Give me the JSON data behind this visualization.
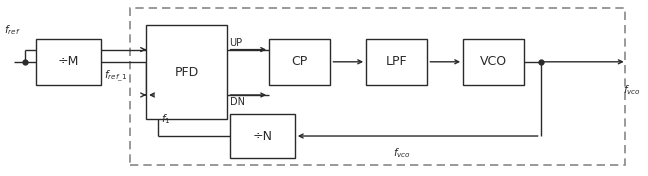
{
  "figsize": [
    6.48,
    1.76
  ],
  "dpi": 100,
  "bg": "#ffffff",
  "lc": "#2a2a2a",
  "dc": "#888888",
  "outer": [
    0.2,
    0.06,
    0.765,
    0.9
  ],
  "blocks": {
    "divM": [
      0.055,
      0.52,
      0.1,
      0.26
    ],
    "PFD": [
      0.225,
      0.32,
      0.125,
      0.54
    ],
    "CP": [
      0.415,
      0.52,
      0.095,
      0.26
    ],
    "LPF": [
      0.565,
      0.52,
      0.095,
      0.26
    ],
    "VCO": [
      0.715,
      0.52,
      0.095,
      0.26
    ],
    "divN": [
      0.355,
      0.1,
      0.1,
      0.25
    ]
  },
  "labels": {
    "divM": "÷M",
    "PFD": "PFD",
    "CP": "CP",
    "LPF": "LPF",
    "VCO": "VCO",
    "divN": "÷N"
  },
  "font_block": 9,
  "font_label": 7.5,
  "font_updn": 7,
  "lw": 1.0,
  "dot_size": 3.5
}
